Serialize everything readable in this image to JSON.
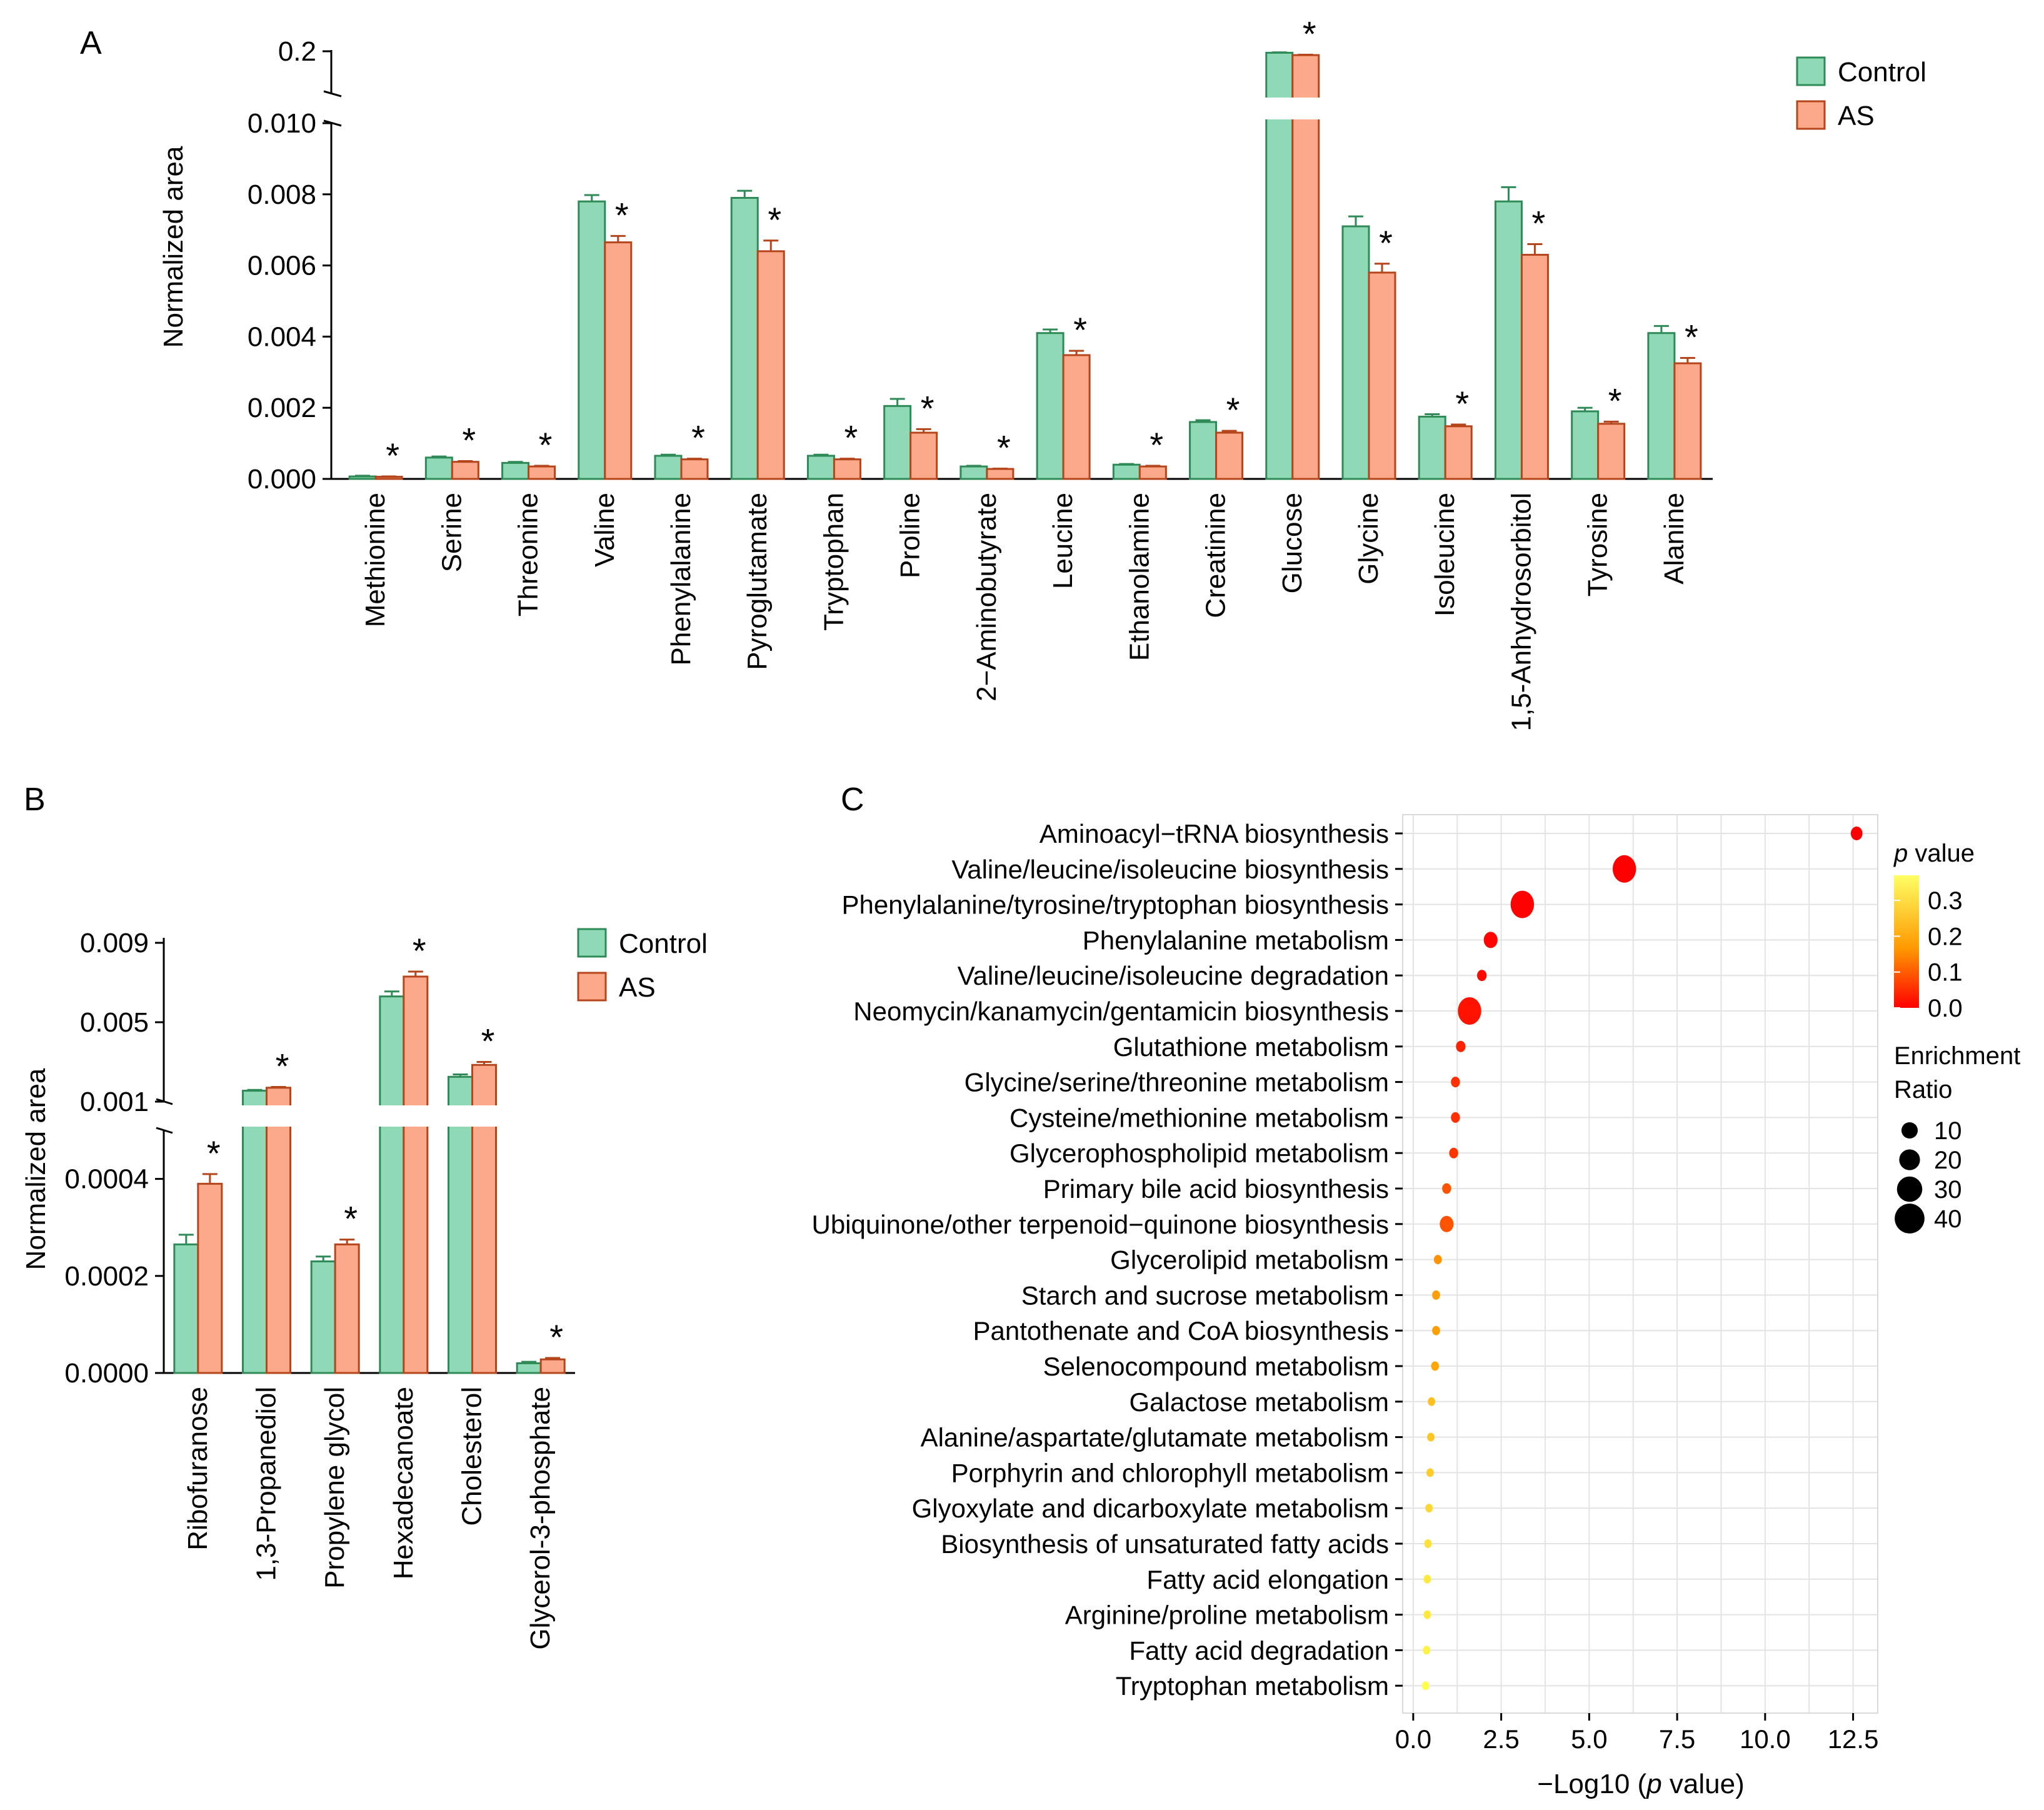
{
  "panel_labels": {
    "a": "A",
    "b": "B",
    "c": "C"
  },
  "colors": {
    "control": "#8fd9b6",
    "control_edge": "#2e8b57",
    "as": "#fca88a",
    "as_edge": "#b5451b",
    "pval_high": "#ffff66",
    "pval_mid": "#ff9900",
    "pval_low": "#ff0000"
  },
  "chart_data": [
    {
      "id": "panelA",
      "type": "bar",
      "title": "",
      "ylabel": "Normalized area",
      "xlabel": "",
      "legend": {
        "position": "top-right",
        "entries": [
          "Control",
          "AS"
        ]
      },
      "significance_marker": "*",
      "y_axis_broken": true,
      "lower_segment": {
        "ylim": [
          0,
          0.01
        ],
        "ticks": [
          0.0,
          0.002,
          0.004,
          0.006,
          0.008,
          0.01
        ],
        "tick_labels": [
          "0.000",
          "0.002",
          "0.004",
          "0.006",
          "0.008",
          "0.010"
        ]
      },
      "upper_segment": {
        "ylim": [
          0.18,
          0.2
        ],
        "ticks": [
          0.2
        ],
        "tick_labels": [
          "0.2"
        ]
      },
      "categories": [
        "Methionine",
        "Serine",
        "Threonine",
        "Valine",
        "Phenylalanine",
        "Pyroglutamate",
        "Tryptophan",
        "Proline",
        "2−Aminobutyrate",
        "Leucine",
        "Ethanolamine",
        "Creatinine",
        "Glucose",
        "Glycine",
        "Isoleucine",
        "1,5-Anhydrosorbitol",
        "Tyrosine",
        "Alanine"
      ],
      "series": [
        {
          "name": "Control",
          "values": [
            7e-05,
            0.0006,
            0.00045,
            0.0078,
            0.00065,
            0.0079,
            0.00065,
            0.00205,
            0.00035,
            0.0041,
            0.0004,
            0.0016,
            0.1993,
            0.0071,
            0.00175,
            0.0078,
            0.0019,
            0.0041
          ],
          "errors": [
            2e-05,
            3e-05,
            3e-05,
            0.00018,
            3e-05,
            0.0002,
            3e-05,
            0.0002,
            2e-05,
            0.0001,
            2e-05,
            5e-05,
            0.0002,
            0.00028,
            7e-05,
            0.0004,
            0.0001,
            0.0002
          ]
        },
        {
          "name": "AS",
          "values": [
            6e-05,
            0.00048,
            0.00035,
            0.00665,
            0.00055,
            0.0064,
            0.00055,
            0.0013,
            0.00028,
            0.00348,
            0.00035,
            0.0013,
            0.1982,
            0.0058,
            0.00148,
            0.0063,
            0.00155,
            0.00325
          ],
          "errors": [
            1e-05,
            2e-05,
            2e-05,
            0.00018,
            2e-05,
            0.0003,
            2e-05,
            0.0001,
            1e-05,
            0.00012,
            2e-05,
            5e-05,
            0.0002,
            0.00025,
            5e-05,
            0.0003,
            6e-05,
            0.00015
          ]
        }
      ],
      "significant": [
        true,
        true,
        true,
        true,
        true,
        true,
        true,
        true,
        true,
        true,
        true,
        true,
        true,
        true,
        true,
        true,
        true,
        true
      ]
    },
    {
      "id": "panelB",
      "type": "bar",
      "title": "",
      "ylabel": "Normalized area",
      "xlabel": "",
      "legend": {
        "position": "top-right",
        "entries": [
          "Control",
          "AS"
        ]
      },
      "significance_marker": "*",
      "y_axis_broken": true,
      "lower_segment": {
        "ylim": [
          0,
          0.0005
        ],
        "ticks": [
          0.0,
          0.0002,
          0.0004
        ],
        "tick_labels": [
          "0.0000",
          "0.0002",
          "0.0004"
        ]
      },
      "upper_segment": {
        "ylim": [
          0.001,
          0.009
        ],
        "ticks": [
          0.001,
          0.005,
          0.009
        ],
        "tick_labels": [
          "0.001",
          "0.005",
          "0.009"
        ]
      },
      "categories": [
        "Ribofuranose",
        "1,3-Propanediol",
        "Propylene glycol",
        "Hexadecanoate",
        "Cholesterol",
        "Glycerol-3-phosphate"
      ],
      "series": [
        {
          "name": "Control",
          "values": [
            0.000265,
            0.00155,
            0.00023,
            0.0063,
            0.00225,
            2e-05
          ],
          "errors": [
            2e-05,
            4e-05,
            1e-05,
            0.00025,
            0.00012,
            3e-06
          ]
        },
        {
          "name": "AS",
          "values": [
            0.00039,
            0.0017,
            0.000265,
            0.0073,
            0.00285,
            2.8e-05
          ],
          "errors": [
            2e-05,
            4e-05,
            1e-05,
            0.00025,
            0.00015,
            3e-06
          ]
        }
      ],
      "significant": [
        true,
        true,
        true,
        true,
        true,
        true
      ]
    },
    {
      "id": "panelC",
      "type": "scatter",
      "title": "",
      "xlabel_prefix": "−Log10 (",
      "xlabel_italic": "p",
      "xlabel_suffix": " value)",
      "xlim": [
        -0.3,
        13.2
      ],
      "x_ticks": [
        0.0,
        2.5,
        5.0,
        7.5,
        10.0,
        12.5
      ],
      "x_tick_labels": [
        "0.0",
        "2.5",
        "5.0",
        "7.5",
        "10.0",
        "12.5"
      ],
      "grid": true,
      "categories": [
        "Aminoacyl−tRNA biosynthesis",
        "Valine/leucine/isoleucine biosynthesis",
        "Phenylalanine/tyrosine/tryptophan biosynthesis",
        "Phenylalanine metabolism",
        "Valine/leucine/isoleucine degradation",
        "Neomycin/kanamycin/gentamicin biosynthesis",
        "Glutathione metabolism",
        "Glycine/serine/threonine metabolism",
        "Cysteine/methionine metabolism",
        "Glycerophospholipid metabolism",
        "Primary bile acid biosynthesis",
        "Ubiquinone/other terpenoid−quinone biosynthesis",
        "Glycerolipid metabolism",
        "Starch and sucrose metabolism",
        "Pantothenate and CoA biosynthesis",
        "Selenocompound metabolism",
        "Galactose metabolism",
        "Alanine/aspartate/glutamate metabolism",
        "Porphyrin and chlorophyll metabolism",
        "Glyoxylate and dicarboxylate metabolism",
        "Biosynthesis of unsaturated fatty acids",
        "Fatty acid elongation",
        "Arginine/proline metabolism",
        "Fatty acid degradation",
        "Tryptophan metabolism"
      ],
      "x": [
        12.6,
        6.0,
        3.1,
        2.2,
        1.95,
        1.6,
        1.35,
        1.2,
        1.2,
        1.15,
        0.95,
        0.95,
        0.7,
        0.65,
        0.65,
        0.62,
        0.52,
        0.5,
        0.48,
        0.45,
        0.42,
        0.4,
        0.4,
        0.38,
        0.35
      ],
      "enrichment_ratio": [
        18,
        40,
        40,
        22,
        14,
        40,
        14,
        13,
        13,
        13,
        13,
        22,
        11,
        11,
        11,
        11,
        10,
        10,
        10,
        10,
        10,
        10,
        10,
        10,
        10
      ],
      "p_value": [
        0.0,
        0.0,
        0.001,
        0.006,
        0.011,
        0.025,
        0.045,
        0.063,
        0.063,
        0.071,
        0.112,
        0.112,
        0.2,
        0.224,
        0.224,
        0.24,
        0.302,
        0.316,
        0.331,
        0.355,
        0.38,
        0.398,
        0.398,
        0.417,
        0.447
      ],
      "legend": {
        "position": "right",
        "color_title_italic": "p",
        "color_title_suffix": " value",
        "color_ticks": [
          0.3,
          0.2,
          0.1,
          0.0
        ],
        "color_tick_labels": [
          "0.3",
          "0.2",
          "0.1",
          "0.0"
        ],
        "size_title_line1": "Enrichment",
        "size_title_line2": "Ratio",
        "size_values": [
          10,
          20,
          30,
          40
        ],
        "size_labels": [
          "10",
          "20",
          "30",
          "40"
        ]
      }
    }
  ]
}
